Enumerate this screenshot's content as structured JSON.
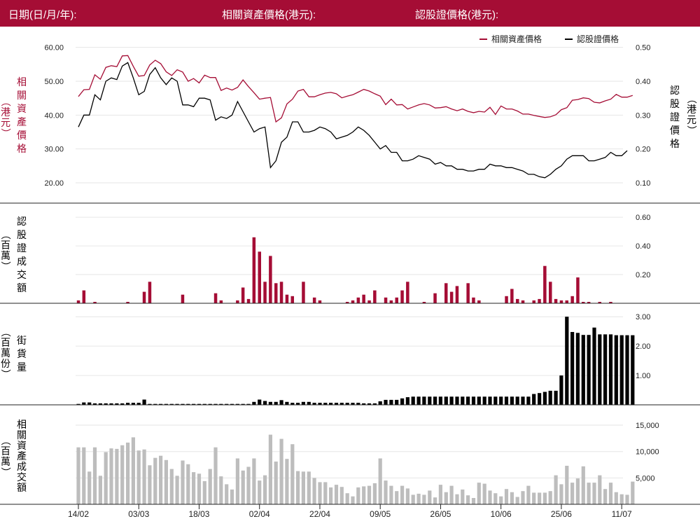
{
  "header": {
    "date_label": "日期(日/月/年):",
    "asset_price_label": "相關資產價格(港元):",
    "warrant_price_label": "認股證價格(港元):"
  },
  "colors": {
    "header_bg": "#a50d35",
    "asset": "#a50d35",
    "warrant": "#000000",
    "asset_turnover": "#bdbdbd",
    "grid": "#e6e6e6"
  },
  "chart_data": [
    {
      "type": "line",
      "legend": [
        "相關資產價格",
        "認股證價格"
      ],
      "legend_position": "top-right",
      "ylabel_left": "相關資產價格",
      "ylabel_left_unit": "（港元）",
      "ylabel_right": "認股證價格",
      "ylabel_right_unit": "（港元）",
      "yticks_left": [
        "20.00",
        "30.00",
        "40.00",
        "50.00",
        "60.00"
      ],
      "yticks_right": [
        "0.10",
        "0.20",
        "0.30",
        "0.40",
        "0.50"
      ],
      "ylim_left": [
        14,
        62
      ],
      "ylim_right": [
        0.04,
        0.52
      ],
      "series": [
        {
          "name": "相關資產價格",
          "axis": "left",
          "values": [
            45.5,
            47.5,
            47.6,
            51.9,
            50.6,
            54.1,
            54.6,
            54.3,
            57.5,
            57.6,
            54.4,
            51.5,
            51.7,
            54.8,
            56.2,
            55.2,
            52.8,
            51.7,
            53.4,
            52.7,
            50.0,
            50.8,
            49.5,
            51.8,
            51.1,
            51.1,
            47.3,
            48.0,
            47.4,
            48.2,
            50.4,
            48.4,
            46.6,
            44.7,
            45.0,
            45.2,
            38.0,
            39.2,
            43.3,
            44.7,
            47.1,
            47.6,
            45.4,
            45.4,
            46.0,
            46.5,
            46.7,
            46.3,
            45.1,
            45.6,
            46.0,
            46.8,
            47.6,
            47.1,
            46.3,
            45.6,
            43.1,
            44.7,
            43.0,
            43.1,
            41.8,
            42.4,
            43.0,
            43.4,
            43.0,
            42.1,
            42.2,
            42.5,
            41.8,
            41.3,
            41.8,
            41.1,
            40.7,
            41.1,
            40.9,
            42.3,
            40.2,
            42.7,
            41.8,
            41.8,
            41.2,
            40.3,
            40.3,
            39.9,
            39.6,
            39.3,
            39.5,
            40.1,
            41.6,
            42.2,
            44.4,
            44.6,
            45.1,
            44.9,
            43.8,
            43.6,
            44.2,
            44.7,
            46.1,
            45.3,
            45.3,
            45.8
          ]
        },
        {
          "name": "認股證價格",
          "axis": "right",
          "values": [
            0.265,
            0.3,
            0.3,
            0.36,
            0.345,
            0.4,
            0.41,
            0.405,
            0.445,
            0.455,
            0.41,
            0.36,
            0.37,
            0.42,
            0.44,
            0.41,
            0.39,
            0.41,
            0.4,
            0.33,
            0.33,
            0.325,
            0.35,
            0.35,
            0.345,
            0.285,
            0.295,
            0.29,
            0.3,
            0.34,
            0.31,
            0.28,
            0.25,
            0.26,
            0.265,
            0.145,
            0.165,
            0.22,
            0.235,
            0.28,
            0.28,
            0.25,
            0.25,
            0.255,
            0.265,
            0.26,
            0.25,
            0.23,
            0.235,
            0.24,
            0.25,
            0.265,
            0.255,
            0.24,
            0.22,
            0.2,
            0.21,
            0.19,
            0.19,
            0.165,
            0.165,
            0.17,
            0.18,
            0.175,
            0.17,
            0.155,
            0.16,
            0.15,
            0.15,
            0.14,
            0.14,
            0.135,
            0.135,
            0.14,
            0.14,
            0.155,
            0.15,
            0.15,
            0.145,
            0.145,
            0.14,
            0.135,
            0.125,
            0.125,
            0.118,
            0.115,
            0.125,
            0.14,
            0.15,
            0.17,
            0.18,
            0.18,
            0.18,
            0.165,
            0.165,
            0.17,
            0.175,
            0.19,
            0.18,
            0.18,
            0.195
          ]
        }
      ]
    },
    {
      "type": "bar",
      "ylabel": "認股證成交額",
      "ylabel_unit": "（百萬）",
      "yticks": [
        "0.20",
        "0.40",
        "0.60"
      ],
      "ylim": [
        0,
        0.62
      ],
      "values": [
        0.02,
        0.09,
        0,
        0.01,
        0,
        0,
        0,
        0,
        0,
        0.01,
        0,
        0,
        0.08,
        0.15,
        0,
        0,
        0,
        0,
        0,
        0.06,
        0,
        0,
        0,
        0,
        0,
        0.07,
        0.02,
        0,
        0,
        0.02,
        0.11,
        0.03,
        0.46,
        0.36,
        0.15,
        0.33,
        0.14,
        0.15,
        0.06,
        0.05,
        0,
        0.15,
        0,
        0.04,
        0.02,
        0,
        0,
        0,
        0,
        0.01,
        0.02,
        0.04,
        0.06,
        0.02,
        0.09,
        0,
        0.04,
        0.02,
        0.04,
        0.09,
        0.15,
        0,
        0,
        0.01,
        0,
        0.07,
        0,
        0.14,
        0.08,
        0.12,
        0,
        0.14,
        0.04,
        0.02,
        0,
        0,
        0,
        0,
        0.05,
        0.1,
        0.03,
        0.02,
        0,
        0.02,
        0.03,
        0.26,
        0.15,
        0.03,
        0.02,
        0.02,
        0.05,
        0.18,
        0.01,
        0.01,
        0,
        0.01,
        0,
        0.01
      ]
    },
    {
      "type": "bar",
      "ylabel": "街貨量",
      "ylabel_unit": "（百萬份）",
      "yticks": [
        "1.00",
        "2.00",
        "3.00"
      ],
      "ylim": [
        0,
        3.1
      ],
      "values": [
        0.03,
        0.08,
        0.08,
        0.05,
        0.05,
        0.05,
        0.05,
        0.05,
        0.05,
        0.07,
        0.07,
        0.07,
        0.18,
        0.03,
        0.03,
        0.03,
        0.03,
        0.03,
        0.03,
        0.03,
        0.03,
        0.03,
        0.03,
        0.03,
        0.03,
        0.03,
        0.03,
        0.03,
        0.03,
        0.03,
        0.03,
        0.03,
        0.1,
        0.18,
        0.13,
        0.1,
        0.1,
        0.16,
        0.1,
        0.07,
        0.07,
        0.1,
        0.1,
        0.07,
        0.07,
        0.07,
        0.07,
        0.07,
        0.07,
        0.07,
        0.07,
        0.07,
        0.05,
        0.05,
        0.05,
        0.12,
        0.17,
        0.17,
        0.17,
        0.22,
        0.26,
        0.28,
        0.28,
        0.28,
        0.28,
        0.28,
        0.28,
        0.28,
        0.28,
        0.28,
        0.28,
        0.28,
        0.28,
        0.28,
        0.28,
        0.28,
        0.28,
        0.28,
        0.28,
        0.28,
        0.28,
        0.28,
        0.28,
        0.37,
        0.4,
        0.44,
        0.48,
        0.48,
        1.0,
        3.0,
        2.48,
        2.45,
        2.38,
        2.38,
        2.63,
        2.4,
        2.4,
        2.4,
        2.37,
        2.37,
        2.37,
        2.37
      ]
    },
    {
      "type": "bar",
      "ylabel": "相關資產成交額",
      "ylabel_unit": "（百萬）",
      "yticks": [
        "5,000",
        "10,000",
        "15,000"
      ],
      "ylim": [
        0,
        17000
      ],
      "values": [
        10800,
        10800,
        6200,
        10800,
        5400,
        9900,
        10600,
        10500,
        11200,
        11700,
        12700,
        10200,
        10400,
        7400,
        8800,
        9200,
        8400,
        6700,
        5400,
        8300,
        7600,
        6100,
        5800,
        4400,
        6700,
        10800,
        5300,
        3800,
        2800,
        8700,
        6400,
        7100,
        8700,
        4500,
        5500,
        13200,
        8100,
        12400,
        8600,
        11400,
        6300,
        6200,
        6200,
        5000,
        4200,
        4200,
        3200,
        3700,
        3300,
        2100,
        1500,
        3200,
        3400,
        3500,
        4000,
        8700,
        4500,
        3500,
        2500,
        3500,
        3000,
        1800,
        2000,
        1800,
        2600,
        1300,
        3700,
        2300,
        3500,
        1900,
        2800,
        1700,
        1200,
        4100,
        3900,
        2600,
        2100,
        1500,
        2900,
        2300,
        1400,
        2500,
        3500,
        2200,
        2200,
        2200,
        2500,
        5500,
        3800,
        7300,
        4100,
        4900,
        7200,
        4100,
        4100,
        5500,
        2900,
        4100,
        2300,
        1900,
        1800,
        4300
      ]
    },
    {
      "type": "axis",
      "xtick_labels": [
        "14/02",
        "03/03",
        "18/03",
        "02/04",
        "22/04",
        "09/05",
        "26/05",
        "10/06",
        "25/06",
        "11/07"
      ],
      "xtick_index": [
        0,
        11,
        22,
        33,
        44,
        55,
        66,
        77,
        88,
        99
      ]
    }
  ]
}
